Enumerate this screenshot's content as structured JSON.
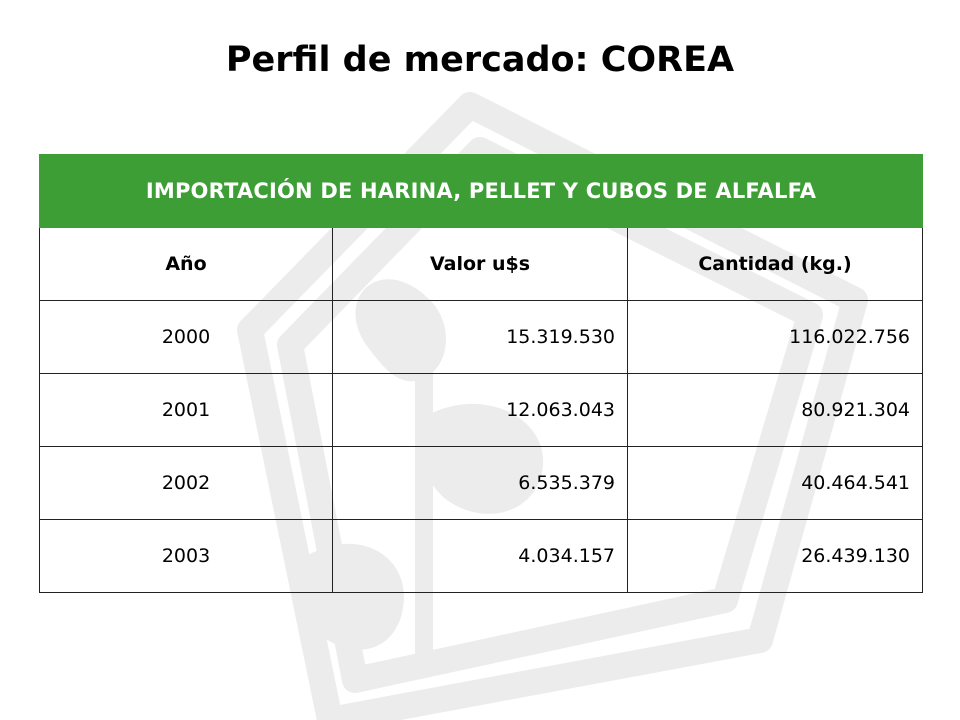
{
  "slide": {
    "title": "Perfil de mercado: COREA"
  },
  "table": {
    "banner": "IMPORTACIÓN DE HARINA, PELLET Y CUBOS DE ALFALFA",
    "headers": [
      "Año",
      "Valor u$s",
      "Cantidad (kg.)"
    ],
    "rows": [
      [
        "2000",
        "15.319.530",
        "116.022.756"
      ],
      [
        "2001",
        "12.063.043",
        "80.921.304"
      ],
      [
        "2002",
        "6.535.379",
        "40.464.541"
      ],
      [
        "2003",
        "4.034.157",
        "26.439.130"
      ]
    ]
  },
  "colors": {
    "banner_green": "#3d9e36",
    "watermark_gray": "#ececec"
  },
  "icons": {
    "watermark": "leaf-sprout-emblem"
  }
}
